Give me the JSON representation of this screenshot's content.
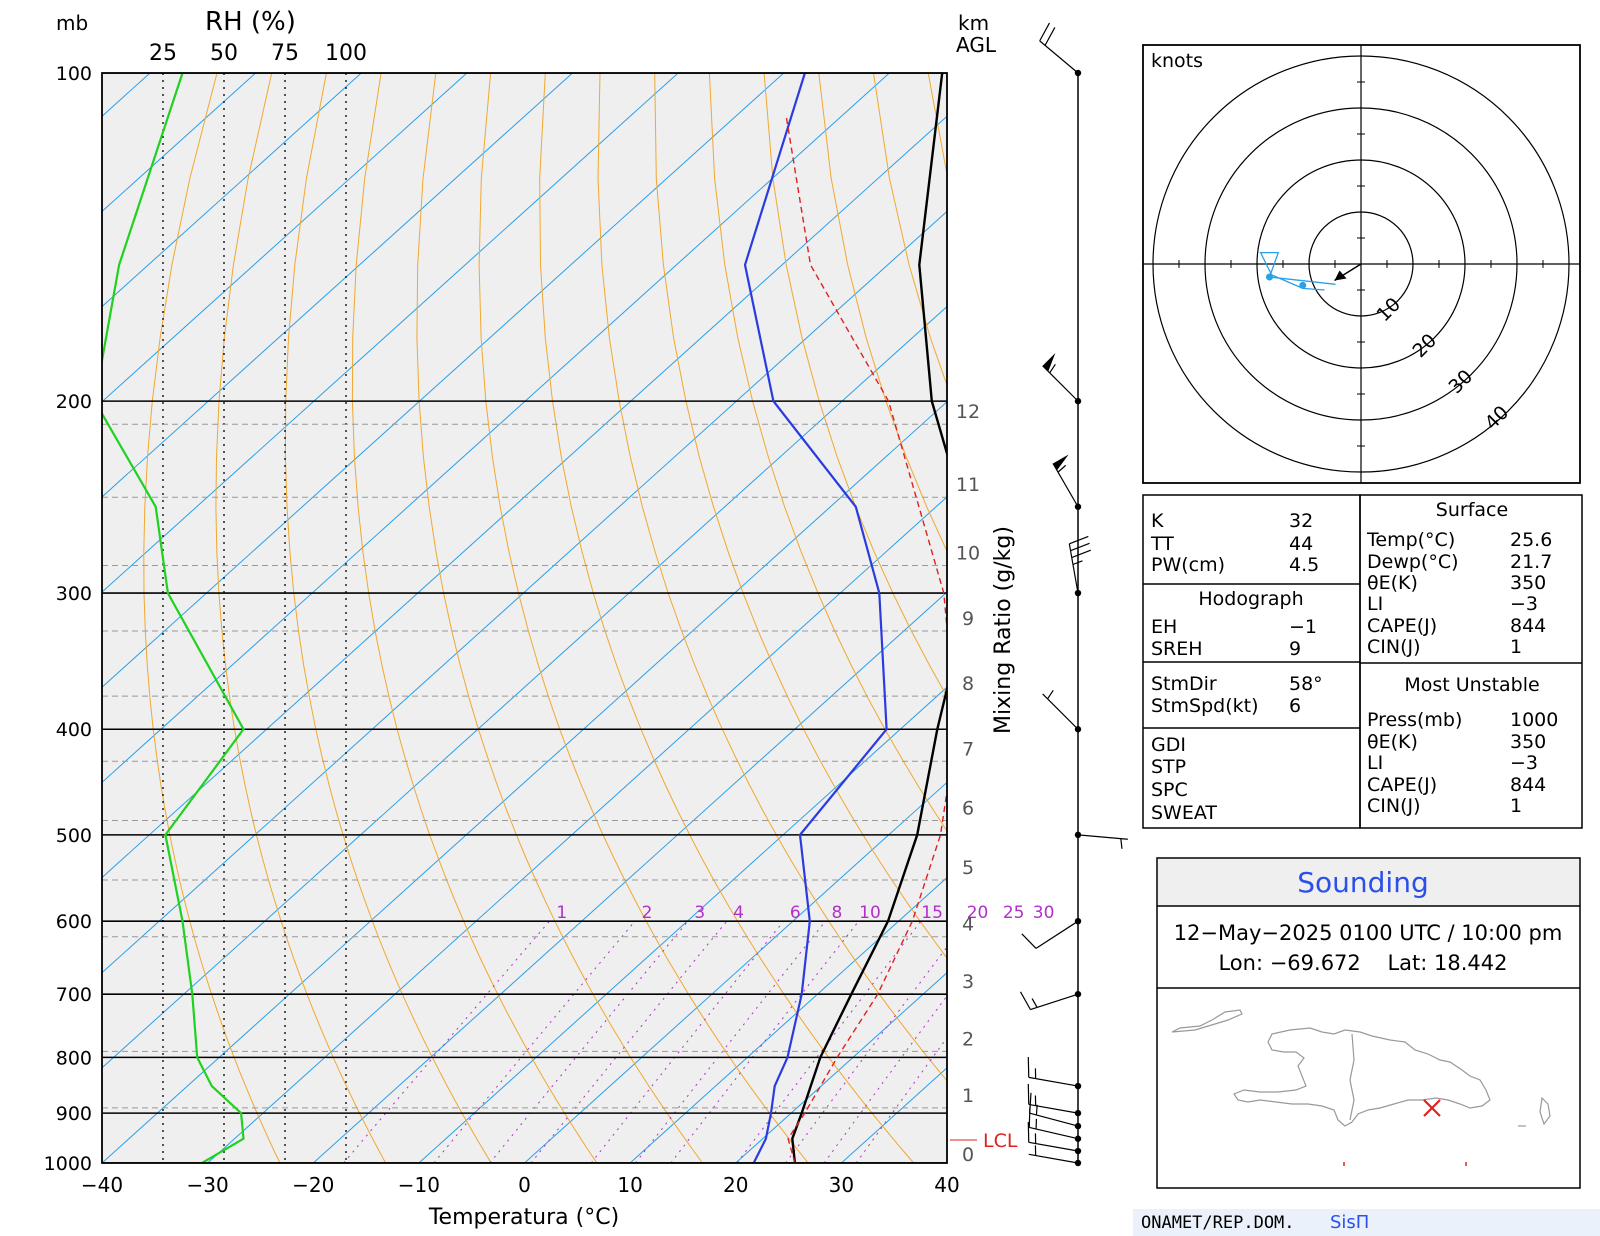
{
  "skewt": {
    "pressure_unit": "mb",
    "rh_title": "RH (%)",
    "rh_ticks": [
      "25",
      "50",
      "75",
      "100"
    ],
    "height_unit": "km",
    "height_ref": "AGL",
    "x_title": "Temperatura (°C)",
    "mixing_title": "Mixing Ratio (g/kg)",
    "lcl_label": "LCL"
  },
  "hodograph": {
    "unit_label": "knots",
    "ring_labels": [
      "10",
      "20",
      "30",
      "40"
    ]
  },
  "indices": {
    "rows": [
      {
        "label": "K",
        "value": "32"
      },
      {
        "label": "TT",
        "value": "44"
      },
      {
        "label": "PW(cm)",
        "value": "4.5"
      }
    ],
    "hodo_title": "Hodograph",
    "hodo_rows": [
      {
        "label": "EH",
        "value": "−1"
      },
      {
        "label": "SREH",
        "value": "9"
      }
    ],
    "storm_rows": [
      {
        "label": "StmDir",
        "value": "58°"
      },
      {
        "label": "StmSpd(kt)",
        "value": "6"
      }
    ],
    "extra_rows": [
      {
        "label": "GDI",
        "value": ""
      },
      {
        "label": "STP",
        "value": ""
      },
      {
        "label": "SPC",
        "value": ""
      },
      {
        "label": "SWEAT",
        "value": ""
      }
    ],
    "surface_title": "Surface",
    "surface_rows": [
      {
        "label": "Temp(°C)",
        "value": "25.6"
      },
      {
        "label": "Dewp(°C)",
        "value": "21.7"
      },
      {
        "label": "θE(K)",
        "value": "350"
      },
      {
        "label": "LI",
        "value": "−3"
      },
      {
        "label": "CAPE(J)",
        "value": "844"
      },
      {
        "label": "CIN(J)",
        "value": "1"
      }
    ],
    "mu_title": "Most Unstable",
    "mu_rows": [
      {
        "label": "Press(mb)",
        "value": "1000"
      },
      {
        "label": "θE(K)",
        "value": "350"
      },
      {
        "label": "LI",
        "value": "−3"
      },
      {
        "label": "CAPE(J)",
        "value": "844"
      },
      {
        "label": "CIN(J)",
        "value": "1"
      }
    ]
  },
  "info": {
    "title": "Sounding",
    "datetime": "12−May−2025 0100 UTC / 10:00 pm",
    "location": "Lon: −69.672    Lat: 18.442"
  },
  "credit": {
    "org": "ONAMET/REP.DOM.",
    "brand": "SisΠ"
  },
  "colors": {
    "temperature": "#000000",
    "dewpoint": "#2a3be0",
    "rh": "#1fd21f",
    "parcel": "#e02020",
    "isotherm": "#2aa0ea",
    "dry_adiabat": "#f0a830",
    "mixing_ratio": "#b030c8",
    "brand": "#2b50e8"
  },
  "chart_data": {
    "type": "line",
    "chart": "skew-T log-p sounding",
    "pressure_levels_mb": [
      1000,
      900,
      800,
      700,
      600,
      500,
      400,
      300,
      200,
      100
    ],
    "x_ticks_c": [
      -40,
      -30,
      -20,
      -10,
      0,
      10,
      20,
      30,
      40
    ],
    "xlim_c": [
      -40,
      40
    ],
    "ylim_mb": [
      1000,
      100
    ],
    "height_ticks_km": [
      "0",
      "1",
      "2",
      "3",
      "4",
      "5",
      "6",
      "7",
      "8",
      "9",
      "10",
      "11",
      "12"
    ],
    "height_levels_mb": [
      1000,
      890,
      790,
      700,
      620,
      550,
      485,
      428,
      373,
      325,
      283,
      245,
      210
    ],
    "mixing_ratio_lines_gkg": [
      1,
      2,
      3,
      4,
      6,
      8,
      10,
      15,
      20,
      25,
      30
    ],
    "lcl_mb": 950,
    "series": [
      {
        "name": "temperature",
        "points": [
          [
            1000,
            25.6
          ],
          [
            950,
            22.8
          ],
          [
            900,
            21.0
          ],
          [
            800,
            16.9
          ],
          [
            700,
            13.2
          ],
          [
            600,
            9.0
          ],
          [
            500,
            2.7
          ],
          [
            400,
            -6.5
          ],
          [
            300,
            -17.7
          ],
          [
            250,
            -27.5
          ],
          [
            200,
            -41.5
          ],
          [
            150,
            -57.0
          ],
          [
            100,
            -75.0
          ]
        ]
      },
      {
        "name": "dewpoint",
        "points": [
          [
            1000,
            21.7
          ],
          [
            950,
            20.3
          ],
          [
            900,
            18.1
          ],
          [
            850,
            15.6
          ],
          [
            800,
            13.8
          ],
          [
            700,
            8.5
          ],
          [
            600,
            1.6
          ],
          [
            500,
            -8.4
          ],
          [
            400,
            -11.3
          ],
          [
            300,
            -26.3
          ],
          [
            250,
            -37.6
          ],
          [
            200,
            -56.5
          ],
          [
            150,
            -73.5
          ],
          [
            100,
            -88.0
          ]
        ]
      },
      {
        "name": "parcel",
        "points": [
          [
            1000,
            25.6
          ],
          [
            950,
            22.4
          ],
          [
            900,
            21.3
          ],
          [
            800,
            18.5
          ],
          [
            700,
            15.7
          ],
          [
            600,
            11.3
          ],
          [
            500,
            4.9
          ],
          [
            400,
            -4.7
          ],
          [
            300,
            -20.2
          ],
          [
            200,
            -45.6
          ],
          [
            150,
            -67.3
          ],
          [
            110,
            -85.0
          ]
        ]
      },
      {
        "name": "RH (%)",
        "points": [
          [
            1000,
            41
          ],
          [
            950,
            58
          ],
          [
            900,
            57
          ],
          [
            850,
            45
          ],
          [
            800,
            39
          ],
          [
            700,
            37
          ],
          [
            600,
            33
          ],
          [
            500,
            26
          ],
          [
            400,
            58
          ],
          [
            300,
            27
          ],
          [
            250,
            22
          ],
          [
            200,
            -3
          ],
          [
            150,
            7
          ],
          [
            100,
            33
          ]
        ]
      }
    ],
    "wind_barbs_kt": [
      {
        "p": 1000,
        "dir": 280,
        "spd": 5
      },
      {
        "p": 975,
        "dir": 280,
        "spd": 15
      },
      {
        "p": 950,
        "dir": 283,
        "spd": 15
      },
      {
        "p": 925,
        "dir": 285,
        "spd": 15
      },
      {
        "p": 900,
        "dir": 280,
        "spd": 15
      },
      {
        "p": 850,
        "dir": 280,
        "spd": 15
      },
      {
        "p": 700,
        "dir": 252,
        "spd": 15
      },
      {
        "p": 600,
        "dir": 237,
        "spd": 10
      },
      {
        "p": 500,
        "dir": 95,
        "spd": 5
      },
      {
        "p": 400,
        "dir": 315,
        "spd": 5
      },
      {
        "p": 300,
        "dir": 350,
        "spd": 35
      },
      {
        "p": 250,
        "dir": 330,
        "spd": 55
      },
      {
        "p": 200,
        "dir": 315,
        "spd": 55
      },
      {
        "p": 100,
        "dir": 310,
        "spd": 20
      }
    ],
    "hodograph_points_kt": [
      [
        -4.9,
        -3.9
      ],
      [
        -17.6,
        -2.5
      ],
      [
        -15.9,
        2.2
      ],
      [
        -19.3,
        2.2
      ],
      [
        -17.2,
        -2.1
      ],
      [
        -11.2,
        -4.7
      ],
      [
        -7,
        -5
      ]
    ],
    "storm_motion": {
      "dir_deg": 58,
      "spd_kt": 6
    },
    "station_marker": {
      "lon": -69.672,
      "lat": 18.442
    }
  }
}
